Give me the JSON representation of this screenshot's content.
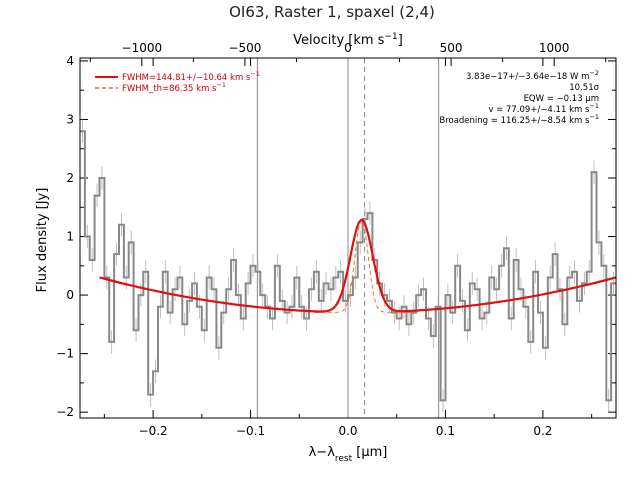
{
  "chart_data": {
    "type": "line",
    "title": "OI63, Raster 1, spaxel (2,4)",
    "xlabel": "λ−λ",
    "xlabel_sub": "rest",
    "xlabel_unit": " [μm]",
    "ylabel": "Flux density [Jy]",
    "top_xlabel": "Velocity [km s",
    "top_xlabel_sup": "−1",
    "top_xlabel_end": "]",
    "xlim": [
      -0.275,
      0.275
    ],
    "ylim": [
      -2.1,
      4.05
    ],
    "top_xlim": [
      -1300,
      1300
    ],
    "x_ticks": [
      -0.2,
      -0.1,
      0.0,
      0.1,
      0.2
    ],
    "x_tick_labels": [
      "−0.2",
      "−0.1",
      "0.0",
      "0.1",
      "0.2"
    ],
    "y_ticks": [
      -2,
      -1,
      0,
      1,
      2,
      3,
      4
    ],
    "y_tick_labels": [
      "−2",
      "−1",
      "0",
      "1",
      "2",
      "3",
      "4"
    ],
    "top_ticks": [
      -1000,
      -500,
      0,
      500,
      1000
    ],
    "top_tick_labels": [
      "−1000",
      "−500",
      "0",
      "500",
      "1000"
    ],
    "vertical_lines": [
      -0.093,
      0.0,
      0.093
    ],
    "center_dashed_line": 0.017,
    "colors": {
      "spectrum": "#888888",
      "fit": "#e01010",
      "components": "#ff6010",
      "grid": "#888888"
    },
    "legend": {
      "placement": "top-left",
      "entries": [
        {
          "label": "FWHM=144.81+/−10.64 km s",
          "sup": "−1",
          "style": "solid"
        },
        {
          "label": "FWHM_th=86.35 km s",
          "sup": "−1",
          "style": "dashed"
        }
      ]
    },
    "annotations": {
      "flux": "3.83e−17+/−3.64e−18 W m",
      "flux_sup": "−2",
      "sigma": "10.51σ",
      "eqw": "EQW = −0.13 μm",
      "velocity": "v = 77.09+/−4.11 km s",
      "velocity_sup": "−1",
      "broadening": "Broadening = 116.25+/−8.54 km s",
      "broadening_sup": "−1"
    },
    "spectrum": {
      "name": "spectrum",
      "x": [
        -0.275,
        -0.27,
        -0.265,
        -0.26,
        -0.255,
        -0.25,
        -0.245,
        -0.24,
        -0.235,
        -0.23,
        -0.225,
        -0.22,
        -0.215,
        -0.21,
        -0.205,
        -0.2,
        -0.195,
        -0.19,
        -0.185,
        -0.18,
        -0.175,
        -0.17,
        -0.165,
        -0.16,
        -0.155,
        -0.15,
        -0.145,
        -0.14,
        -0.135,
        -0.13,
        -0.125,
        -0.12,
        -0.115,
        -0.11,
        -0.105,
        -0.1,
        -0.095,
        -0.09,
        -0.085,
        -0.08,
        -0.075,
        -0.07,
        -0.065,
        -0.06,
        -0.055,
        -0.05,
        -0.045,
        -0.04,
        -0.035,
        -0.03,
        -0.025,
        -0.02,
        -0.015,
        -0.01,
        -0.005,
        0.0,
        0.005,
        0.01,
        0.015,
        0.02,
        0.025,
        0.03,
        0.035,
        0.04,
        0.045,
        0.05,
        0.055,
        0.06,
        0.065,
        0.07,
        0.075,
        0.08,
        0.085,
        0.09,
        0.095,
        0.1,
        0.105,
        0.11,
        0.115,
        0.12,
        0.125,
        0.13,
        0.135,
        0.14,
        0.145,
        0.15,
        0.155,
        0.16,
        0.165,
        0.17,
        0.175,
        0.18,
        0.185,
        0.19,
        0.195,
        0.2,
        0.205,
        0.21,
        0.215,
        0.22,
        0.225,
        0.23,
        0.235,
        0.24,
        0.245,
        0.25,
        0.255,
        0.26,
        0.265,
        0.27
      ],
      "values": [
        2.8,
        1.0,
        0.6,
        1.7,
        2.0,
        0.3,
        -0.8,
        0.7,
        1.2,
        0.3,
        0.9,
        -0.6,
        0.0,
        0.4,
        -1.7,
        -1.3,
        -0.2,
        0.4,
        -0.3,
        0.1,
        0.3,
        -0.5,
        -0.1,
        0.2,
        -0.2,
        -0.6,
        0.3,
        0.1,
        -0.9,
        -0.3,
        0.1,
        0.6,
        0.0,
        -0.4,
        0.2,
        0.5,
        0.4,
        0.0,
        -0.2,
        -0.4,
        0.5,
        -0.1,
        -0.3,
        -0.2,
        0.3,
        -0.2,
        -0.4,
        0.1,
        0.4,
        -0.1,
        0.2,
        0.1,
        0.3,
        0.4,
        -0.1,
        0.0,
        0.3,
        0.9,
        1.3,
        1.4,
        0.6,
        0.2,
        0.0,
        -0.1,
        -0.3,
        -0.4,
        -0.2,
        -0.5,
        -0.3,
        0.0,
        0.1,
        -0.4,
        -0.7,
        -0.2,
        -1.8,
        0.0,
        -0.3,
        0.5,
        -0.1,
        -0.6,
        0.2,
        0.1,
        -0.4,
        -0.3,
        0.3,
        0.1,
        0.5,
        0.8,
        -0.4,
        0.6,
        0.1,
        -0.2,
        -0.8,
        0.4,
        -0.3,
        -0.9,
        0.3,
        0.7,
        0.1,
        -0.5,
        0.3,
        0.4,
        -0.1,
        0.2,
        0.4,
        2.1,
        0.9,
        0.5,
        -1.8,
        0.2
      ],
      "error": 0.2
    },
    "fit": {
      "name": "fit",
      "baseline_poly": [
        -0.295,
        0.23,
        8.5
      ],
      "baseline_center": 0.01,
      "gaussian_amplitude": 1.58,
      "gaussian_center": 0.014,
      "gaussian_sigma": 0.0115,
      "x_range": [
        -0.255,
        0.275
      ]
    },
    "instrumental": {
      "name": "instrumental",
      "gaussian_sigma": 0.0068
    }
  }
}
